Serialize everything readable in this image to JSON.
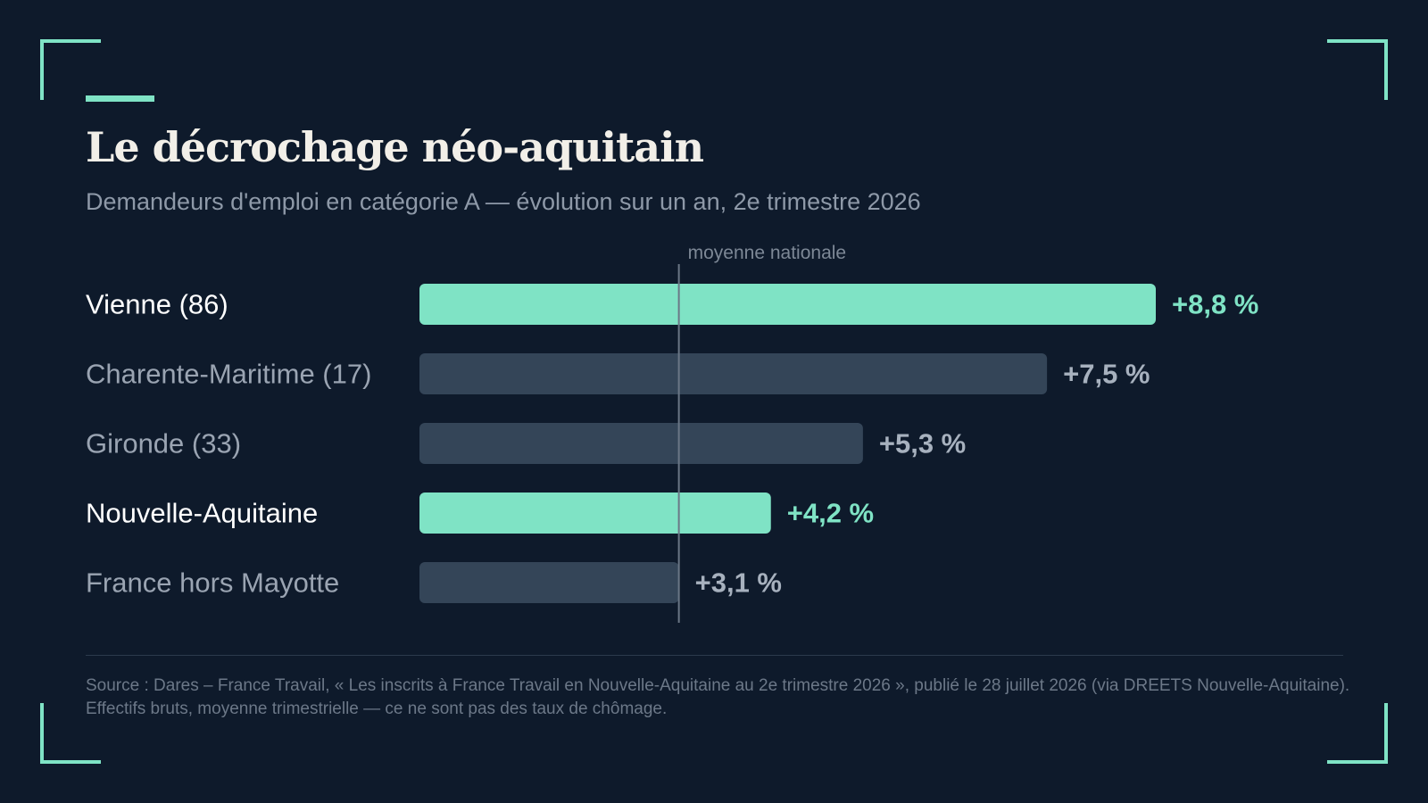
{
  "title": "Le décrochage néo-aquitain",
  "subtitle": "Demandeurs d'emploi en catégorie A — évolution sur un an, 2e trimestre 2026",
  "source": "Source : Dares – France Travail, « Les inscrits à France Travail en Nouvelle-Aquitaine au 2e trimestre 2026 », publié le 28 juillet 2026 (via DREETS Nouvelle-Aquitaine). Effectifs bruts, moyenne trimestrielle — ce ne sont pas des taux de chômage.",
  "colors": {
    "background": "#0e1a2b",
    "accent": "#7fe3c5",
    "bar_default": "#344558",
    "label_highlight": "#ffffff",
    "label_default": "#9aa4b2",
    "value_default": "#a7b1be",
    "reference_line": "#6b7786"
  },
  "chart_data": {
    "type": "bar",
    "orientation": "horizontal",
    "categories": [
      "Vienne (86)",
      "Charente-Maritime (17)",
      "Gironde (33)",
      "Nouvelle-Aquitaine",
      "France hors Mayotte"
    ],
    "values": [
      8.8,
      7.5,
      5.3,
      4.2,
      3.1
    ],
    "value_labels": [
      "+8,8 %",
      "+7,5 %",
      "+5,3 %",
      "+4,2 %",
      "+3,1 %"
    ],
    "highlighted": [
      true,
      false,
      false,
      true,
      false
    ],
    "reference_line": {
      "label": "moyenne nationale",
      "value": 3.1
    },
    "xlim": [
      0,
      8.8
    ],
    "grid": false
  }
}
